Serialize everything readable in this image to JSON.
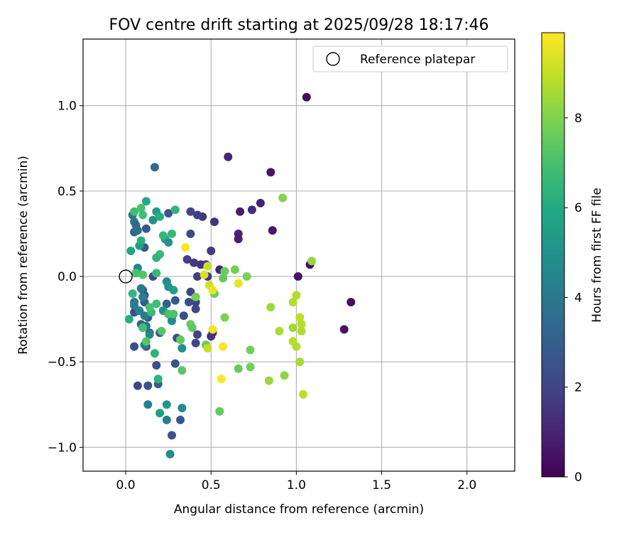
{
  "chart_data": {
    "type": "scatter",
    "title": "FOV centre drift starting at 2025/09/28 18:17:46",
    "xlabel": "Angular distance from reference (arcmin)",
    "ylabel": "Rotation from reference (arcmin)",
    "xlim": [
      -0.25,
      2.28
    ],
    "ylim": [
      -1.14,
      1.39
    ],
    "x_ticks": [
      0.0,
      0.5,
      1.0,
      1.5,
      2.0
    ],
    "x_tick_labels": [
      "0.0",
      "0.5",
      "1.0",
      "1.5",
      "2.0"
    ],
    "y_ticks": [
      -1.0,
      -0.5,
      0.0,
      0.5,
      1.0
    ],
    "y_tick_labels": [
      "−1.0",
      "−0.5",
      "0.0",
      "0.5",
      "1.0"
    ],
    "grid": true,
    "legend": {
      "position": "top-right",
      "label": "Reference platepar"
    },
    "reference_point": {
      "x": 0.0,
      "y": 0.0
    },
    "colorbar": {
      "label": "Hours from first FF file",
      "colormap": "viridis",
      "range": [
        0,
        9.9
      ],
      "ticks": [
        0,
        2,
        4,
        6,
        8
      ],
      "tick_labels": [
        "0",
        "2",
        "4",
        "6",
        "8"
      ]
    },
    "points": [
      {
        "x": 1.06,
        "y": 1.05,
        "c": 0.3
      },
      {
        "x": 0.6,
        "y": 0.7,
        "c": 1.0
      },
      {
        "x": 0.85,
        "y": 0.61,
        "c": 0.6
      },
      {
        "x": 0.79,
        "y": 0.43,
        "c": 1.0
      },
      {
        "x": 0.74,
        "y": 0.39,
        "c": 1.2
      },
      {
        "x": 0.67,
        "y": 0.38,
        "c": 0.8
      },
      {
        "x": 0.66,
        "y": 0.25,
        "c": 1.0
      },
      {
        "x": 0.66,
        "y": 0.22,
        "c": 0.9
      },
      {
        "x": 0.86,
        "y": 0.27,
        "c": 0.6
      },
      {
        "x": 0.55,
        "y": 0.04,
        "c": 1.1
      },
      {
        "x": 1.01,
        "y": 0.0,
        "c": 0.5
      },
      {
        "x": 1.08,
        "y": 0.07,
        "c": 0.4
      },
      {
        "x": 1.32,
        "y": -0.15,
        "c": 0.4
      },
      {
        "x": 1.28,
        "y": -0.31,
        "c": 0.5
      },
      {
        "x": 0.52,
        "y": 0.32,
        "c": 1.5
      },
      {
        "x": 0.5,
        "y": 0.15,
        "c": 1.7
      },
      {
        "x": 0.45,
        "y": 0.35,
        "c": 1.6
      },
      {
        "x": 0.42,
        "y": 0.36,
        "c": 1.8
      },
      {
        "x": 0.38,
        "y": 0.38,
        "c": 2.0
      },
      {
        "x": 0.38,
        "y": 0.25,
        "c": 2.2
      },
      {
        "x": 0.36,
        "y": 0.1,
        "c": 1.8
      },
      {
        "x": 0.4,
        "y": 0.08,
        "c": 1.6
      },
      {
        "x": 0.44,
        "y": 0.07,
        "c": 1.5
      },
      {
        "x": 0.47,
        "y": 0.07,
        "c": 1.4
      },
      {
        "x": 0.42,
        "y": 0.0,
        "c": 1.8
      },
      {
        "x": 0.48,
        "y": 0.0,
        "c": 1.6
      },
      {
        "x": 0.38,
        "y": -0.09,
        "c": 2.0
      },
      {
        "x": 0.41,
        "y": -0.15,
        "c": 1.8
      },
      {
        "x": 0.41,
        "y": -0.19,
        "c": 2.1
      },
      {
        "x": 0.37,
        "y": -0.15,
        "c": 2.3
      },
      {
        "x": 0.34,
        "y": -0.23,
        "c": 2.4
      },
      {
        "x": 0.29,
        "y": -0.14,
        "c": 2.8
      },
      {
        "x": 0.24,
        "y": -0.16,
        "c": 3.0
      },
      {
        "x": 0.22,
        "y": -0.2,
        "c": 2.8
      },
      {
        "x": 0.27,
        "y": -0.24,
        "c": 3.3
      },
      {
        "x": 0.51,
        "y": -0.33,
        "c": 1.3
      },
      {
        "x": 0.5,
        "y": -0.35,
        "c": 1.5
      },
      {
        "x": 0.42,
        "y": -0.34,
        "c": 2.0
      },
      {
        "x": 0.41,
        "y": -0.39,
        "c": 2.1
      },
      {
        "x": 0.3,
        "y": -0.36,
        "c": 2.3
      },
      {
        "x": 0.29,
        "y": -0.51,
        "c": 2.6
      },
      {
        "x": 0.32,
        "y": -0.84,
        "c": 2.7
      },
      {
        "x": 0.27,
        "y": -0.93,
        "c": 2.5
      },
      {
        "x": 0.17,
        "y": 0.64,
        "c": 3.4
      },
      {
        "x": 0.25,
        "y": 0.37,
        "c": 2.6
      },
      {
        "x": 0.12,
        "y": 0.28,
        "c": 2.8
      },
      {
        "x": 0.11,
        "y": 0.17,
        "c": 2.6
      },
      {
        "x": 0.16,
        "y": 0.0,
        "c": 2.3
      },
      {
        "x": 0.1,
        "y": -0.08,
        "c": 2.5
      },
      {
        "x": 0.11,
        "y": -0.11,
        "c": 2.7
      },
      {
        "x": 0.11,
        "y": -0.15,
        "c": 2.9
      },
      {
        "x": 0.07,
        "y": -0.2,
        "c": 2.8
      },
      {
        "x": 0.05,
        "y": -0.21,
        "c": 2.4
      },
      {
        "x": 0.13,
        "y": -0.24,
        "c": 2.9
      },
      {
        "x": 0.09,
        "y": -0.28,
        "c": 3.2
      },
      {
        "x": 0.14,
        "y": -0.33,
        "c": 3.0
      },
      {
        "x": 0.2,
        "y": -0.33,
        "c": 2.7
      },
      {
        "x": 0.12,
        "y": -0.41,
        "c": 2.6
      },
      {
        "x": 0.05,
        "y": -0.41,
        "c": 2.3
      },
      {
        "x": 0.18,
        "y": -0.52,
        "c": 2.4
      },
      {
        "x": 0.07,
        "y": -0.64,
        "c": 2.2
      },
      {
        "x": 0.13,
        "y": -0.64,
        "c": 2.5
      },
      {
        "x": 0.19,
        "y": -0.63,
        "c": 2.9
      },
      {
        "x": 0.05,
        "y": 0.26,
        "c": 3.2
      },
      {
        "x": 0.07,
        "y": 0.27,
        "c": 3.6
      },
      {
        "x": 0.05,
        "y": 0.32,
        "c": 4.0
      },
      {
        "x": 0.06,
        "y": 0.3,
        "c": 3.5
      },
      {
        "x": 0.04,
        "y": 0.36,
        "c": 3.8
      },
      {
        "x": 0.07,
        "y": 0.05,
        "c": 4.5
      },
      {
        "x": 0.09,
        "y": -0.07,
        "c": 4.0
      },
      {
        "x": 0.1,
        "y": -0.12,
        "c": 4.2
      },
      {
        "x": 0.05,
        "y": -0.15,
        "c": 3.8
      },
      {
        "x": 0.05,
        "y": -0.17,
        "c": 4.2
      },
      {
        "x": 0.08,
        "y": -0.2,
        "c": 4.4
      },
      {
        "x": 0.11,
        "y": -0.23,
        "c": 4.1
      },
      {
        "x": 0.12,
        "y": -0.29,
        "c": 4.0
      },
      {
        "x": 0.14,
        "y": -0.34,
        "c": 4.6
      },
      {
        "x": 0.11,
        "y": -0.4,
        "c": 4.3
      },
      {
        "x": 0.13,
        "y": -0.75,
        "c": 4.3
      },
      {
        "x": 0.24,
        "y": -0.84,
        "c": 4.0
      },
      {
        "x": 0.26,
        "y": -1.04,
        "c": 4.7
      },
      {
        "x": 0.33,
        "y": -0.77,
        "c": 4.8
      },
      {
        "x": 0.24,
        "y": -0.03,
        "c": 4.5
      },
      {
        "x": 0.25,
        "y": -0.06,
        "c": 5.0
      },
      {
        "x": 0.28,
        "y": -0.08,
        "c": 5.5
      },
      {
        "x": 0.22,
        "y": -0.2,
        "c": 5.0
      },
      {
        "x": 0.27,
        "y": -0.26,
        "c": 4.8
      },
      {
        "x": 0.33,
        "y": -0.42,
        "c": 4.9
      },
      {
        "x": 0.24,
        "y": -0.75,
        "c": 5.2
      },
      {
        "x": 0.2,
        "y": -0.8,
        "c": 5.5
      },
      {
        "x": 0.16,
        "y": 0.33,
        "c": 5.0
      },
      {
        "x": 0.18,
        "y": 0.38,
        "c": 5.4
      },
      {
        "x": 0.23,
        "y": 0.22,
        "c": 5.3
      },
      {
        "x": 0.25,
        "y": 0.2,
        "c": 5.0
      },
      {
        "x": 0.08,
        "y": 0.18,
        "c": 5.6
      },
      {
        "x": 0.12,
        "y": 0.44,
        "c": 6.0
      },
      {
        "x": 0.2,
        "y": 0.35,
        "c": 6.2
      },
      {
        "x": 0.29,
        "y": 0.39,
        "c": 6.4
      },
      {
        "x": 0.22,
        "y": 0.24,
        "c": 6.5
      },
      {
        "x": 0.27,
        "y": 0.25,
        "c": 6.6
      },
      {
        "x": 0.2,
        "y": 0.13,
        "c": 6.7
      },
      {
        "x": 0.18,
        "y": 0.11,
        "c": 6.4
      },
      {
        "x": 0.03,
        "y": 0.15,
        "c": 5.9
      },
      {
        "x": 0.02,
        "y": -0.25,
        "c": 6.1
      },
      {
        "x": 0.04,
        "y": -0.1,
        "c": 6.5
      },
      {
        "x": 0.09,
        "y": 0.21,
        "c": 6.2
      },
      {
        "x": 0.05,
        "y": 0.38,
        "c": 6.8
      },
      {
        "x": 0.09,
        "y": 0.4,
        "c": 7.0
      },
      {
        "x": 0.1,
        "y": 0.36,
        "c": 6.9
      },
      {
        "x": 0.06,
        "y": 0.02,
        "c": 7.0
      },
      {
        "x": 0.1,
        "y": 0.01,
        "c": 7.2
      },
      {
        "x": 0.18,
        "y": 0.02,
        "c": 6.6
      },
      {
        "x": 0.18,
        "y": -0.16,
        "c": 6.8
      },
      {
        "x": 0.15,
        "y": -0.21,
        "c": 6.6
      },
      {
        "x": 0.14,
        "y": -0.18,
        "c": 7.0
      },
      {
        "x": 0.1,
        "y": -0.3,
        "c": 6.9
      },
      {
        "x": 0.12,
        "y": -0.38,
        "c": 7.2
      },
      {
        "x": 0.17,
        "y": -0.45,
        "c": 6.4
      },
      {
        "x": 0.19,
        "y": -0.6,
        "c": 6.3
      },
      {
        "x": 0.21,
        "y": -0.32,
        "c": 7.2
      },
      {
        "x": 0.25,
        "y": -0.22,
        "c": 7.0
      },
      {
        "x": 0.28,
        "y": -0.22,
        "c": 7.1
      },
      {
        "x": 0.32,
        "y": -0.37,
        "c": 7.4
      },
      {
        "x": 0.33,
        "y": -0.55,
        "c": 7.3
      },
      {
        "x": 0.38,
        "y": -0.28,
        "c": 7.6
      },
      {
        "x": 0.39,
        "y": -0.3,
        "c": 7.4
      },
      {
        "x": 0.41,
        "y": -0.12,
        "c": 7.8
      },
      {
        "x": 0.47,
        "y": -0.4,
        "c": 7.6
      },
      {
        "x": 0.52,
        "y": -0.1,
        "c": 7.6
      },
      {
        "x": 0.57,
        "y": -0.01,
        "c": 7.5
      },
      {
        "x": 0.58,
        "y": 0.03,
        "c": 7.6
      },
      {
        "x": 0.64,
        "y": 0.04,
        "c": 7.8
      },
      {
        "x": 0.71,
        "y": 0.0,
        "c": 7.9
      },
      {
        "x": 0.58,
        "y": -0.24,
        "c": 8.0
      },
      {
        "x": 0.55,
        "y": -0.79,
        "c": 7.5
      },
      {
        "x": 0.66,
        "y": -0.54,
        "c": 7.6
      },
      {
        "x": 0.73,
        "y": -0.53,
        "c": 7.8
      },
      {
        "x": 0.73,
        "y": -0.43,
        "c": 7.8
      },
      {
        "x": 0.92,
        "y": 0.46,
        "c": 8.0
      },
      {
        "x": 1.09,
        "y": 0.09,
        "c": 8.3
      },
      {
        "x": 0.85,
        "y": -0.18,
        "c": 8.5
      },
      {
        "x": 0.84,
        "y": -0.61,
        "c": 8.4
      },
      {
        "x": 0.93,
        "y": -0.58,
        "c": 8.2
      },
      {
        "x": 0.9,
        "y": -0.32,
        "c": 8.6
      },
      {
        "x": 0.98,
        "y": -0.15,
        "c": 8.7
      },
      {
        "x": 1.0,
        "y": -0.11,
        "c": 8.7
      },
      {
        "x": 0.98,
        "y": -0.3,
        "c": 8.5
      },
      {
        "x": 0.98,
        "y": -0.38,
        "c": 8.8
      },
      {
        "x": 1.0,
        "y": -0.41,
        "c": 8.7
      },
      {
        "x": 1.02,
        "y": -0.24,
        "c": 8.9
      },
      {
        "x": 1.03,
        "y": -0.28,
        "c": 8.8
      },
      {
        "x": 1.03,
        "y": -0.32,
        "c": 8.7
      },
      {
        "x": 1.02,
        "y": -0.5,
        "c": 8.6
      },
      {
        "x": 1.04,
        "y": -0.69,
        "c": 8.9
      },
      {
        "x": 0.46,
        "y": 0.01,
        "c": 9.3
      },
      {
        "x": 0.48,
        "y": 0.06,
        "c": 9.0
      },
      {
        "x": 0.49,
        "y": -0.05,
        "c": 9.2
      },
      {
        "x": 0.51,
        "y": -0.08,
        "c": 9.6
      },
      {
        "x": 0.35,
        "y": 0.17,
        "c": 9.8
      },
      {
        "x": 0.66,
        "y": -0.04,
        "c": 9.5
      },
      {
        "x": 0.51,
        "y": -0.31,
        "c": 9.7
      },
      {
        "x": 0.57,
        "y": -0.41,
        "c": 9.8
      },
      {
        "x": 0.56,
        "y": -0.6,
        "c": 9.9
      },
      {
        "x": 0.48,
        "y": -0.42,
        "c": 9.0
      }
    ]
  }
}
